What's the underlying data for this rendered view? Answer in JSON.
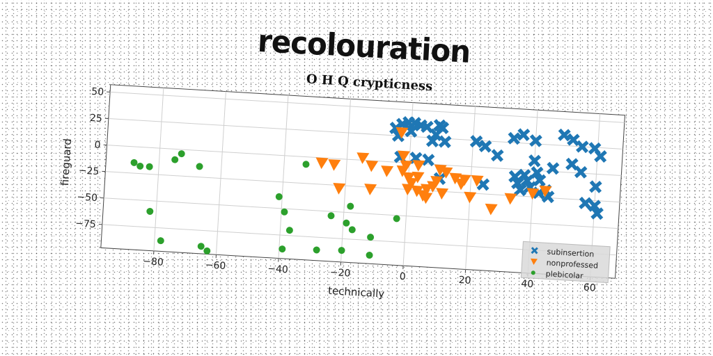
{
  "page_title": "recolouration",
  "chart_data": {
    "type": "scatter",
    "title": "O H Q crypticness",
    "xlabel": "technically",
    "ylabel": "fireguard",
    "xlim": [
      -97,
      68
    ],
    "ylim": [
      -97,
      57
    ],
    "xticks": [
      -80,
      -60,
      -40,
      -20,
      0,
      20,
      40,
      60
    ],
    "yticks": [
      50,
      25,
      0,
      -25,
      -50,
      -75
    ],
    "xtick_labels": [
      "−80",
      "−60",
      "−40",
      "−20",
      "0",
      "20",
      "40",
      "60"
    ],
    "ytick_labels": [
      "50",
      "25",
      "0",
      "−25",
      "−50",
      "−75"
    ],
    "grid": true,
    "legend_position": "lower-right",
    "series": [
      {
        "name": "subinsertion",
        "marker": "X",
        "color": "#1f77b4",
        "points": [
          [
            -5,
            32
          ],
          [
            -3,
            36
          ],
          [
            -4,
            25
          ],
          [
            -1,
            38
          ],
          [
            1,
            38
          ],
          [
            0,
            30
          ],
          [
            3,
            36
          ],
          [
            5,
            35
          ],
          [
            8,
            28
          ],
          [
            9,
            37
          ],
          [
            10,
            35
          ],
          [
            7,
            22
          ],
          [
            11,
            22
          ],
          [
            -3,
            5
          ],
          [
            2,
            5
          ],
          [
            6,
            4
          ],
          [
            10,
            -13
          ],
          [
            21,
            24
          ],
          [
            24,
            20
          ],
          [
            28,
            12
          ],
          [
            33,
            29
          ],
          [
            36,
            33
          ],
          [
            40,
            28
          ],
          [
            49,
            35
          ],
          [
            52,
            31
          ],
          [
            55,
            25
          ],
          [
            59,
            24
          ],
          [
            61,
            17
          ],
          [
            24,
            -16
          ],
          [
            34,
            -7
          ],
          [
            35,
            -13
          ],
          [
            36,
            -19
          ],
          [
            37,
            -5
          ],
          [
            38,
            -10
          ],
          [
            39,
            -16
          ],
          [
            40,
            9
          ],
          [
            41,
            -2
          ],
          [
            42,
            -9
          ],
          [
            42,
            -21
          ],
          [
            44,
            -18
          ],
          [
            45,
            -24
          ],
          [
            46,
            3
          ],
          [
            52,
            8
          ],
          [
            55,
            1
          ],
          [
            60,
            -12
          ],
          [
            57,
            -28
          ],
          [
            60,
            -30
          ],
          [
            61,
            -37
          ]
        ]
      },
      {
        "name": "nonprofessed",
        "marker": "v",
        "color": "#ff7f0e",
        "points": [
          [
            -28,
            -5
          ],
          [
            -24,
            -6
          ],
          [
            -22,
            -28
          ],
          [
            -15,
            2
          ],
          [
            -12,
            -5
          ],
          [
            -12,
            -27
          ],
          [
            -7,
            -9
          ],
          [
            -3,
            28
          ],
          [
            -2,
            6
          ],
          [
            -2,
            -8
          ],
          [
            -1,
            -3
          ],
          [
            0,
            -14
          ],
          [
            0,
            -25
          ],
          [
            1,
            -19
          ],
          [
            3,
            -13
          ],
          [
            3,
            -2
          ],
          [
            3,
            -26
          ],
          [
            5,
            -30
          ],
          [
            6,
            -24
          ],
          [
            6,
            -32
          ],
          [
            8,
            -21
          ],
          [
            9,
            -16
          ],
          [
            10,
            -5
          ],
          [
            11,
            -27
          ],
          [
            12,
            -7
          ],
          [
            15,
            -12
          ],
          [
            17,
            -17
          ],
          [
            18,
            -13
          ],
          [
            20,
            -29
          ],
          [
            22,
            -13
          ],
          [
            27,
            -39
          ],
          [
            33,
            -28
          ],
          [
            40,
            -22
          ],
          [
            44,
            -19
          ]
        ]
      },
      {
        "name": "plebicolar",
        "marker": "o",
        "color": "#2ca02c",
        "points": [
          [
            -88,
            -15
          ],
          [
            -86,
            -18
          ],
          [
            -83,
            -18
          ],
          [
            -82,
            -60
          ],
          [
            -78,
            -87
          ],
          [
            -75,
            -10
          ],
          [
            -73,
            -4
          ],
          [
            -67,
            -15
          ],
          [
            -65,
            -90
          ],
          [
            -63,
            -94
          ],
          [
            -41,
            -39
          ],
          [
            -39,
            -53
          ],
          [
            -37,
            -70
          ],
          [
            -39,
            -88
          ],
          [
            -33,
            -7
          ],
          [
            -28,
            -87
          ],
          [
            -24,
            -54
          ],
          [
            -20,
            -86
          ],
          [
            -19,
            -60
          ],
          [
            -18,
            -44
          ],
          [
            -17,
            -66
          ],
          [
            -11,
            -72
          ],
          [
            -11,
            -89
          ],
          [
            -3,
            -53
          ]
        ]
      }
    ]
  }
}
